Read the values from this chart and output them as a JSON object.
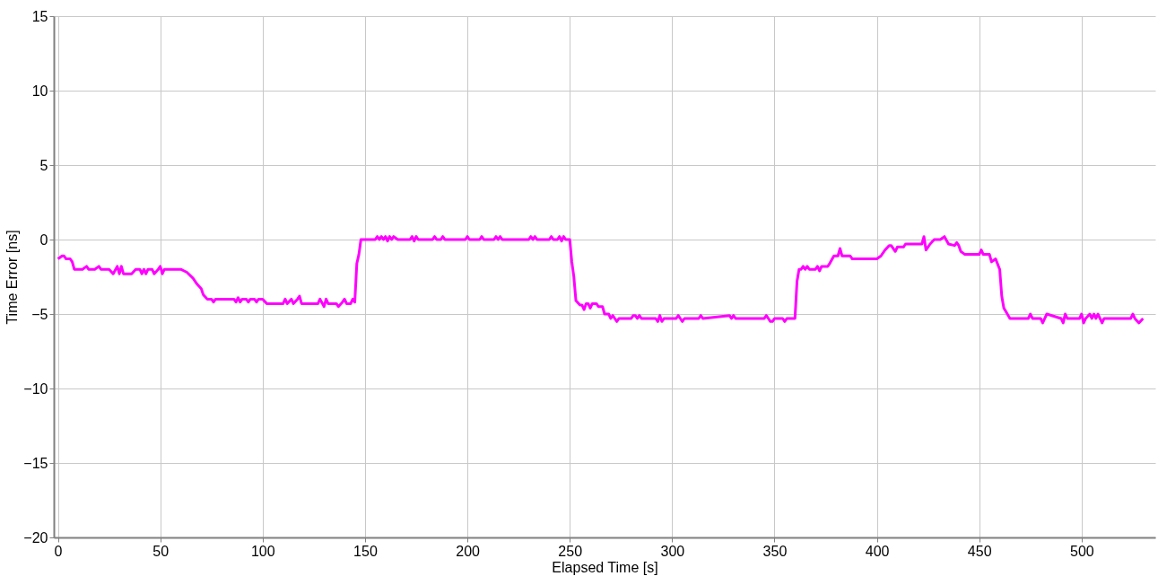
{
  "chart_data": {
    "type": "line",
    "xlabel": "Elapsed Time [s]",
    "ylabel": "Time Error [ns]",
    "xlim": [
      -2,
      536
    ],
    "xticks": [
      0,
      50,
      100,
      150,
      200,
      250,
      300,
      350,
      400,
      450,
      500
    ],
    "ylim": [
      -20,
      15
    ],
    "yticks": [
      -20,
      -15,
      -10,
      -5,
      0,
      5,
      10,
      15
    ],
    "grid": true,
    "legend": false,
    "marker": "none",
    "line_style": "solid",
    "series": [
      {
        "color": "#ff00ff",
        "x": [
          0,
          1,
          2,
          3,
          4,
          6,
          7,
          8,
          12,
          14,
          15,
          18,
          20,
          21,
          25,
          27,
          29,
          30,
          31,
          32,
          36,
          38,
          40,
          41,
          42,
          43,
          44,
          46,
          47,
          49,
          50,
          51,
          52,
          54,
          60,
          63,
          66,
          68,
          70,
          71,
          73,
          75,
          76,
          77,
          86,
          87,
          88,
          89,
          90,
          92,
          93,
          94,
          96,
          97,
          98,
          100,
          102,
          110,
          111,
          112,
          114,
          115,
          117,
          118,
          119,
          127,
          128,
          130,
          131,
          132,
          136,
          137,
          139,
          140,
          141,
          143,
          144,
          145,
          146,
          147,
          148,
          155,
          156,
          157,
          158,
          159,
          160,
          161,
          162,
          163,
          164,
          166,
          172,
          173,
          174,
          175,
          176,
          183,
          184,
          185,
          187,
          188,
          189,
          199,
          200,
          201,
          206,
          207,
          208,
          213,
          214,
          215,
          216,
          217,
          230,
          231,
          232,
          233,
          234,
          240,
          241,
          242,
          244,
          245,
          246,
          247,
          248,
          250,
          251,
          252,
          253,
          255,
          256,
          257,
          258,
          259,
          260,
          261,
          263,
          264,
          266,
          267,
          269,
          270,
          271,
          272,
          273,
          274,
          280,
          281,
          282,
          283,
          284,
          285,
          292,
          293,
          294,
          295,
          296,
          302,
          303,
          304,
          305,
          306,
          313,
          314,
          315,
          328,
          329,
          330,
          331,
          345,
          346,
          347,
          348,
          349,
          350,
          354,
          355,
          356,
          360,
          361,
          362,
          363,
          364,
          365,
          366,
          367,
          370,
          371,
          372,
          373,
          376,
          377,
          379,
          381,
          382,
          383,
          387,
          388,
          389,
          400,
          402,
          404,
          406,
          407,
          409,
          410,
          413,
          414,
          420,
          422,
          423,
          424,
          426,
          428,
          431,
          433,
          435,
          438,
          439,
          440,
          441,
          443,
          450,
          451,
          452,
          455,
          456,
          458,
          460,
          461,
          462,
          465,
          470,
          474,
          475,
          476,
          480,
          481,
          482,
          483,
          490,
          491,
          492,
          493,
          499,
          500,
          501,
          502,
          504,
          505,
          506,
          507,
          508,
          510,
          511,
          512,
          524,
          525,
          526,
          528,
          530
        ],
        "values": [
          -1.3,
          -1.2,
          -1.1,
          -1.1,
          -1.3,
          -1.3,
          -1.5,
          -2.0,
          -2.0,
          -1.8,
          -2.0,
          -2.0,
          -1.8,
          -2.0,
          -2.0,
          -2.3,
          -1.8,
          -2.3,
          -1.8,
          -2.3,
          -2.3,
          -2.0,
          -2.0,
          -2.3,
          -2.0,
          -2.3,
          -2.0,
          -2.0,
          -2.3,
          -2.0,
          -1.8,
          -2.3,
          -2.0,
          -2.0,
          -2.0,
          -2.2,
          -2.6,
          -3.0,
          -3.3,
          -3.7,
          -4.0,
          -4.0,
          -4.2,
          -4.0,
          -4.0,
          -4.2,
          -3.9,
          -4.2,
          -4.0,
          -4.0,
          -4.2,
          -4.0,
          -4.0,
          -4.2,
          -4.0,
          -4.0,
          -4.3,
          -4.3,
          -4.0,
          -4.3,
          -4.0,
          -4.3,
          -4.0,
          -3.8,
          -4.3,
          -4.3,
          -4.0,
          -4.5,
          -4.0,
          -4.3,
          -4.3,
          -4.5,
          -4.2,
          -4.0,
          -4.3,
          -4.3,
          -4.0,
          -4.2,
          -1.6,
          -1.0,
          0,
          0,
          0.2,
          0,
          0.2,
          0,
          0.2,
          -0.1,
          0.2,
          0,
          0.2,
          0,
          0,
          0.2,
          -0.1,
          0.2,
          0,
          0,
          0.2,
          0,
          0,
          0.2,
          0,
          0,
          0.2,
          0,
          0,
          0.2,
          0,
          0,
          0.2,
          0,
          0.2,
          0,
          0,
          0.2,
          0,
          0.2,
          0,
          0,
          0.2,
          0,
          0,
          0.2,
          -0.1,
          0.2,
          0,
          0,
          -1.5,
          -2.5,
          -4.1,
          -4.4,
          -4.4,
          -4.7,
          -4.3,
          -4.3,
          -4.6,
          -4.3,
          -4.3,
          -4.5,
          -4.5,
          -5.0,
          -5.0,
          -5.3,
          -5.1,
          -5.3,
          -5.5,
          -5.3,
          -5.3,
          -5.1,
          -5.1,
          -5.3,
          -5.1,
          -5.3,
          -5.3,
          -5.5,
          -5.1,
          -5.5,
          -5.3,
          -5.3,
          -5.1,
          -5.3,
          -5.5,
          -5.3,
          -5.3,
          -5.1,
          -5.3,
          -5.1,
          -5.3,
          -5.1,
          -5.3,
          -5.3,
          -5.1,
          -5.3,
          -5.5,
          -5.5,
          -5.3,
          -5.3,
          -5.5,
          -5.3,
          -5.3,
          -2.8,
          -2.0,
          -2.0,
          -1.8,
          -2.0,
          -1.8,
          -2.0,
          -2.0,
          -1.8,
          -2.1,
          -1.8,
          -1.8,
          -1.6,
          -1.1,
          -1.1,
          -0.6,
          -1.1,
          -1.1,
          -1.3,
          -1.3,
          -1.3,
          -1.1,
          -0.7,
          -0.4,
          -0.4,
          -0.8,
          -0.5,
          -0.5,
          -0.3,
          -0.3,
          -0.3,
          0.2,
          -0.7,
          -0.3,
          0,
          0,
          0.2,
          -0.3,
          -0.4,
          -0.2,
          -0.4,
          -0.8,
          -1.0,
          -1.0,
          -0.7,
          -1.0,
          -1.0,
          -1.5,
          -1.3,
          -2.0,
          -3.8,
          -4.6,
          -5.3,
          -5.3,
          -5.3,
          -5.0,
          -5.3,
          -5.3,
          -5.6,
          -5.3,
          -5.0,
          -5.3,
          -5.6,
          -5.0,
          -5.3,
          -5.3,
          -5.0,
          -5.6,
          -5.3,
          -5.0,
          -5.3,
          -5.0,
          -5.3,
          -5.0,
          -5.6,
          -5.3,
          -5.3,
          -5.3,
          -5.0,
          -5.3,
          -5.6,
          -5.3
        ]
      }
    ]
  }
}
